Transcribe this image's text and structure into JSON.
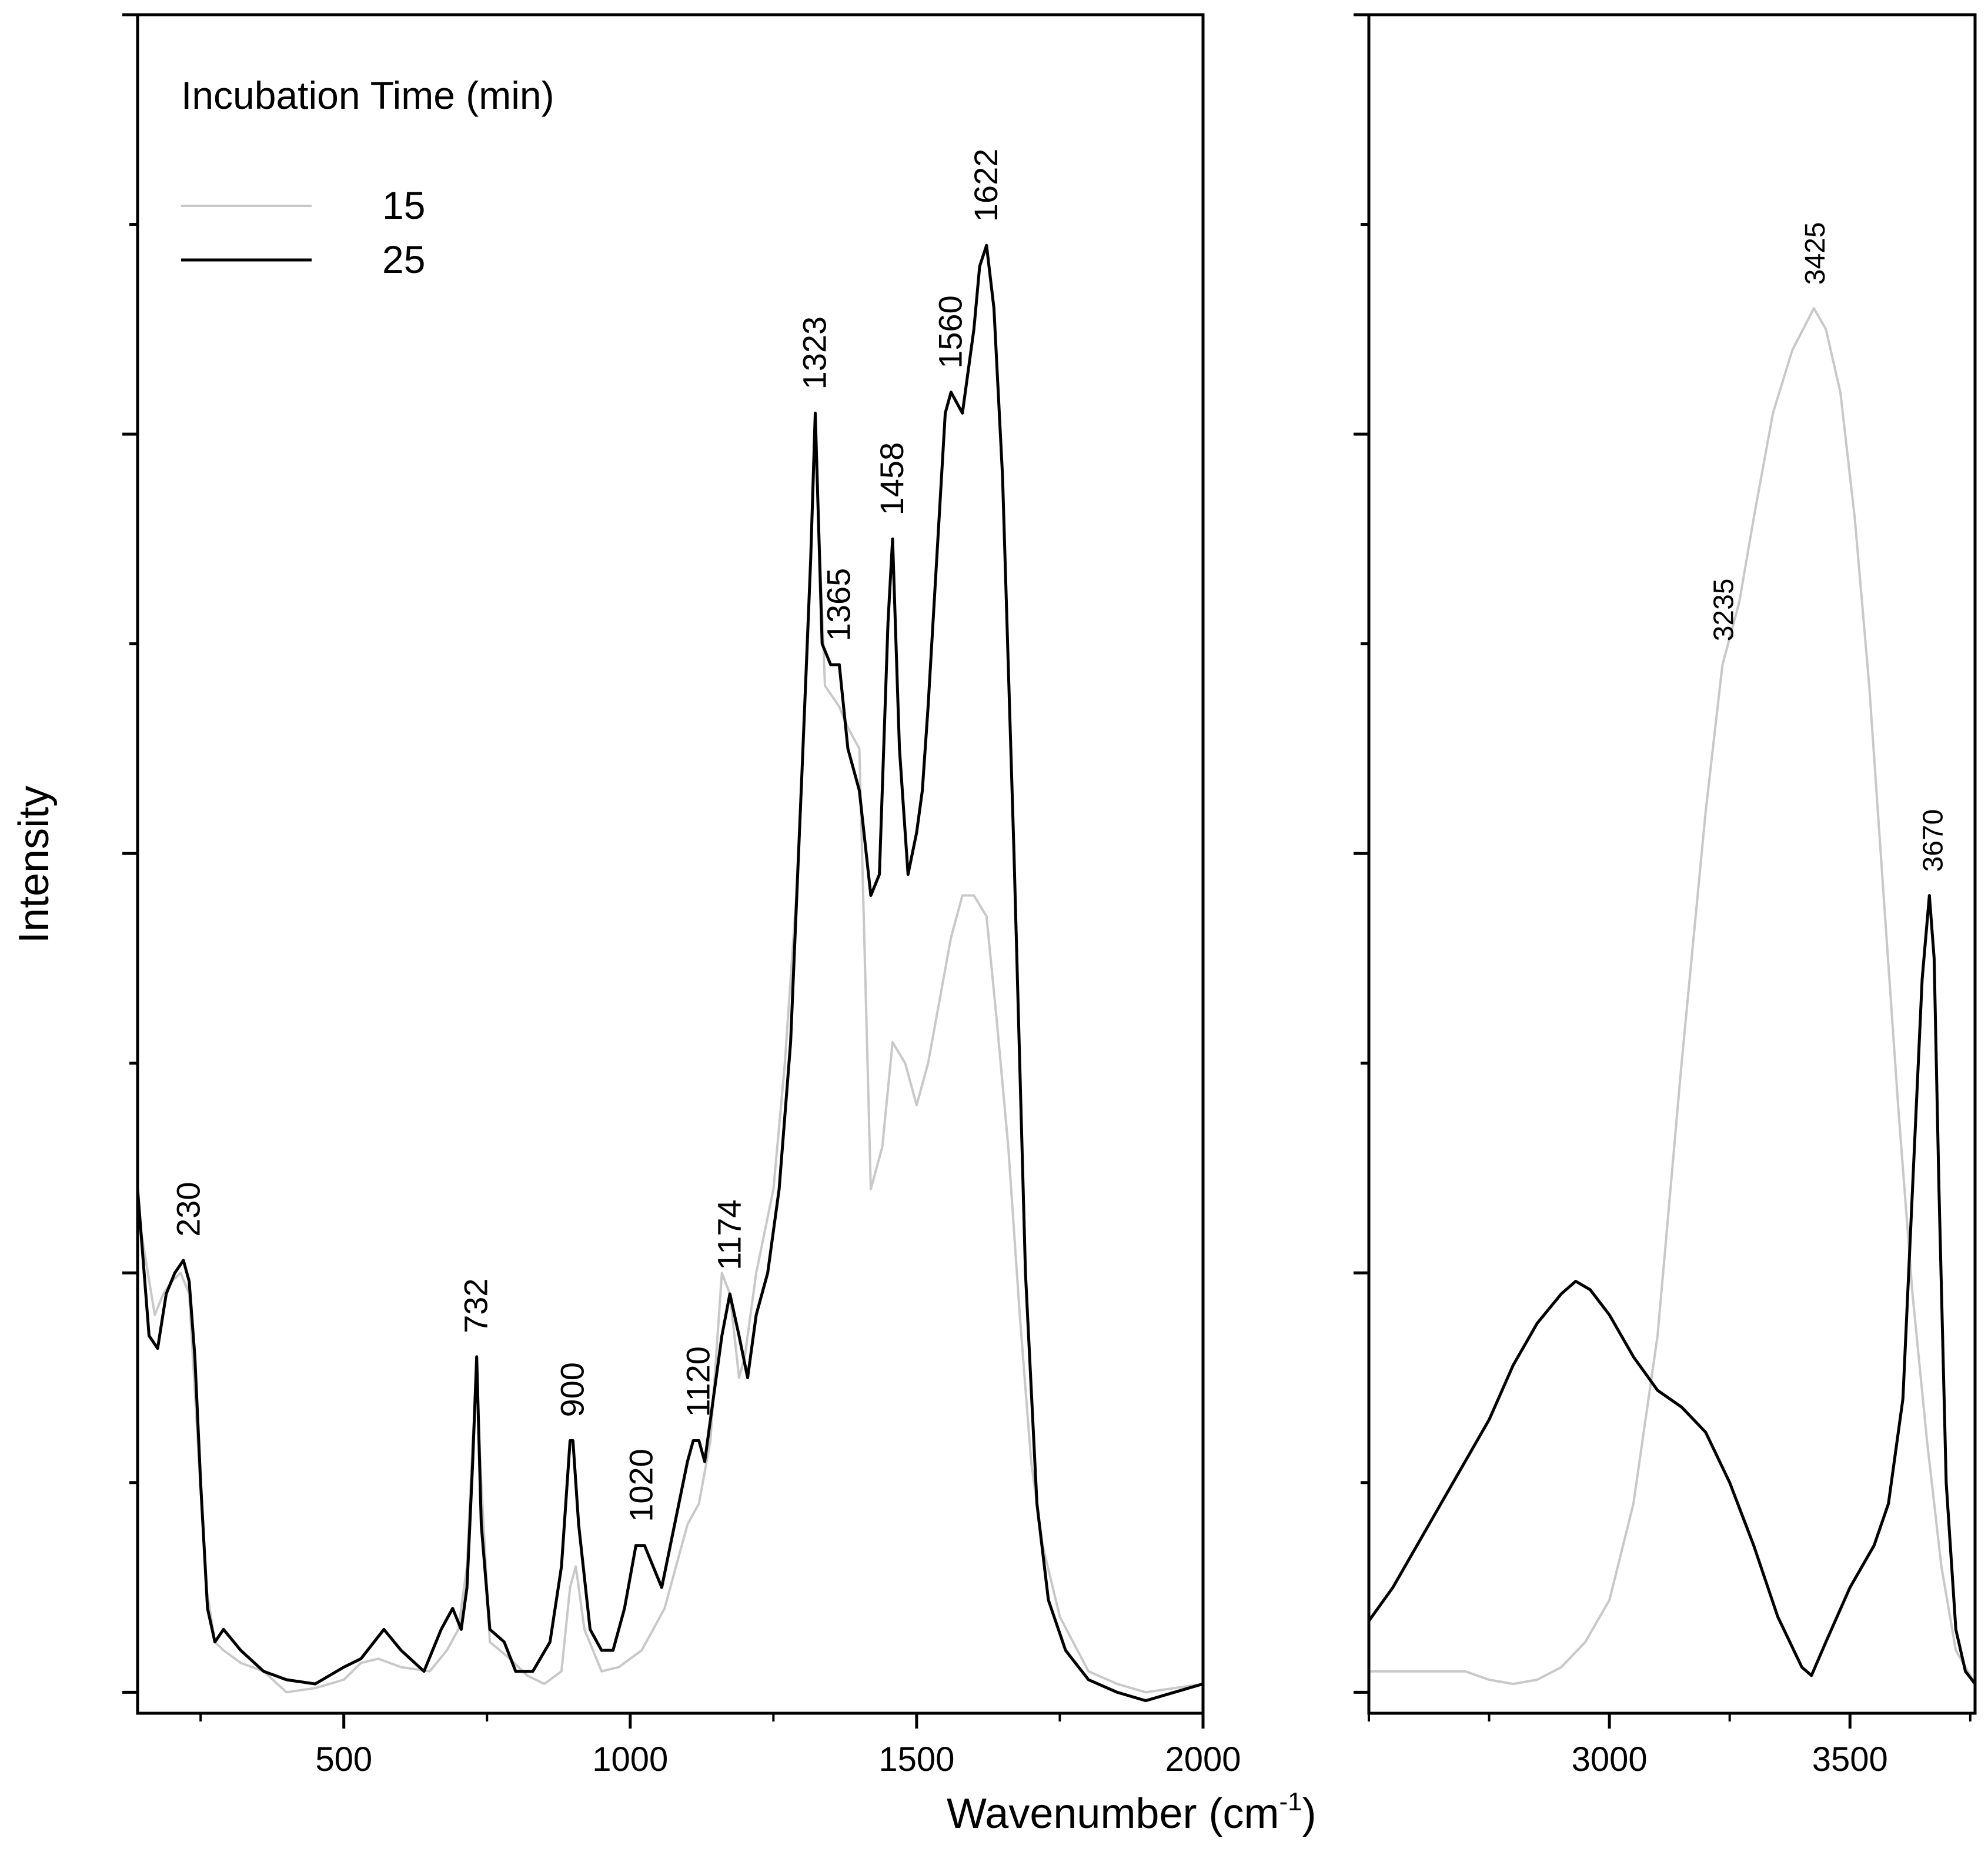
{
  "chart_data": [
    {
      "type": "line",
      "panel": "left",
      "title": "",
      "xlabel": "Wavenumber (cm-1)",
      "xlabel_main": "Wavenumber (cm",
      "xlabel_sup": "-1",
      "xlabel_close": ")",
      "ylabel": "Intensity",
      "xlim": [
        140,
        2000
      ],
      "ylim": [
        -0.05,
        4.0
      ],
      "xticks": [
        500,
        1000,
        1500,
        2000
      ],
      "xtick_labels": [
        "500",
        "1000",
        "1500",
        "2000"
      ],
      "yticks": [
        0,
        0.5,
        1,
        1.5,
        2,
        2.5,
        3,
        3.5,
        4
      ],
      "grid": false,
      "legend": {
        "title": "Incubation Time (min)",
        "position": "top-left",
        "entries": [
          {
            "label": "15",
            "color": "#c8c8c8"
          },
          {
            "label": "25",
            "color": "#000000"
          }
        ]
      },
      "series": [
        {
          "name": "15",
          "color": "#c8c8c8",
          "x": [
            140,
            170,
            185,
            200,
            215,
            230,
            245,
            260,
            275,
            290,
            320,
            360,
            400,
            450,
            500,
            530,
            560,
            600,
            650,
            680,
            700,
            715,
            725,
            732,
            740,
            755,
            790,
            820,
            850,
            880,
            895,
            905,
            920,
            950,
            980,
            1000,
            1020,
            1040,
            1060,
            1080,
            1100,
            1120,
            1140,
            1150,
            1160,
            1174,
            1190,
            1200,
            1220,
            1250,
            1270,
            1290,
            1310,
            1323,
            1340,
            1365,
            1380,
            1400,
            1420,
            1440,
            1458,
            1480,
            1500,
            1520,
            1540,
            1560,
            1580,
            1600,
            1622,
            1640,
            1660,
            1680,
            1700,
            1720,
            1750,
            1800,
            1850,
            1900,
            1950,
            2000
          ],
          "y": [
            1.15,
            0.9,
            0.95,
            0.98,
            1.0,
            0.95,
            0.6,
            0.25,
            0.12,
            0.1,
            0.07,
            0.05,
            0.0,
            0.01,
            0.03,
            0.07,
            0.08,
            0.06,
            0.05,
            0.1,
            0.15,
            0.3,
            0.6,
            0.75,
            0.5,
            0.12,
            0.08,
            0.04,
            0.02,
            0.05,
            0.25,
            0.3,
            0.15,
            0.05,
            0.06,
            0.08,
            0.1,
            0.15,
            0.2,
            0.3,
            0.4,
            0.45,
            0.6,
            0.8,
            1.0,
            0.95,
            0.75,
            0.8,
            1.0,
            1.2,
            1.5,
            1.9,
            2.5,
            3.0,
            2.4,
            2.35,
            2.3,
            2.25,
            1.2,
            1.3,
            1.55,
            1.5,
            1.4,
            1.5,
            1.65,
            1.8,
            1.9,
            1.9,
            1.85,
            1.6,
            1.3,
            0.9,
            0.55,
            0.35,
            0.18,
            0.05,
            0.02,
            0.0,
            0.01,
            0.02
          ]
        },
        {
          "name": "25",
          "color": "#000000",
          "x": [
            140,
            160,
            175,
            190,
            205,
            220,
            230,
            240,
            250,
            262,
            275,
            290,
            320,
            360,
            400,
            450,
            500,
            530,
            570,
            600,
            640,
            670,
            690,
            705,
            715,
            725,
            732,
            740,
            755,
            780,
            800,
            830,
            860,
            880,
            895,
            900,
            910,
            930,
            950,
            970,
            990,
            1010,
            1025,
            1040,
            1055,
            1070,
            1085,
            1100,
            1110,
            1120,
            1130,
            1145,
            1160,
            1174,
            1190,
            1205,
            1220,
            1240,
            1260,
            1280,
            1300,
            1315,
            1323,
            1335,
            1350,
            1365,
            1380,
            1400,
            1420,
            1435,
            1450,
            1458,
            1470,
            1485,
            1500,
            1510,
            1520,
            1535,
            1550,
            1560,
            1580,
            1600,
            1610,
            1622,
            1635,
            1650,
            1670,
            1690,
            1710,
            1730,
            1760,
            1800,
            1850,
            1900,
            1950,
            2000
          ],
          "y": [
            1.2,
            0.85,
            0.82,
            0.95,
            1.0,
            1.03,
            0.98,
            0.8,
            0.5,
            0.2,
            0.12,
            0.15,
            0.1,
            0.05,
            0.03,
            0.02,
            0.06,
            0.08,
            0.15,
            0.1,
            0.05,
            0.15,
            0.2,
            0.15,
            0.25,
            0.55,
            0.8,
            0.4,
            0.15,
            0.12,
            0.05,
            0.05,
            0.12,
            0.3,
            0.6,
            0.6,
            0.4,
            0.15,
            0.1,
            0.1,
            0.2,
            0.35,
            0.35,
            0.3,
            0.25,
            0.35,
            0.45,
            0.55,
            0.6,
            0.6,
            0.55,
            0.7,
            0.85,
            0.95,
            0.85,
            0.75,
            0.9,
            1.0,
            1.2,
            1.55,
            2.2,
            2.7,
            3.05,
            2.5,
            2.45,
            2.45,
            2.25,
            2.15,
            1.9,
            1.95,
            2.55,
            2.75,
            2.25,
            1.95,
            2.05,
            2.15,
            2.35,
            2.7,
            3.05,
            3.1,
            3.05,
            3.25,
            3.4,
            3.45,
            3.3,
            2.9,
            2.0,
            1.0,
            0.45,
            0.22,
            0.1,
            0.03,
            0.0,
            -0.02,
            0.0,
            0.02
          ]
        }
      ],
      "annotations": [
        {
          "text": "230",
          "x": 230,
          "y": 1.03
        },
        {
          "text": "732",
          "x": 732,
          "y": 0.8
        },
        {
          "text": "900",
          "x": 900,
          "y": 0.6
        },
        {
          "text": "1020",
          "x": 1020,
          "y": 0.35
        },
        {
          "text": "1120",
          "x": 1120,
          "y": 0.6
        },
        {
          "text": "1174",
          "x": 1174,
          "y": 0.95
        },
        {
          "text": "1323",
          "x": 1323,
          "y": 3.05
        },
        {
          "text": "1365",
          "x": 1365,
          "y": 2.45
        },
        {
          "text": "1458",
          "x": 1458,
          "y": 2.75
        },
        {
          "text": "1560",
          "x": 1560,
          "y": 3.1
        },
        {
          "text": "1622",
          "x": 1622,
          "y": 3.45
        }
      ]
    },
    {
      "type": "line",
      "panel": "right",
      "xlim": [
        2500,
        3760
      ],
      "ylim": [
        -0.05,
        4.0
      ],
      "xticks": [
        3000,
        3500
      ],
      "xtick_labels": [
        "3000",
        "3500"
      ],
      "yticks": [
        0,
        0.5,
        1,
        1.5,
        2,
        2.5,
        3,
        3.5,
        4
      ],
      "grid": false,
      "series": [
        {
          "name": "15",
          "color": "#c8c8c8",
          "x": [
            2500,
            2600,
            2700,
            2750,
            2800,
            2850,
            2900,
            2950,
            3000,
            3050,
            3100,
            3150,
            3200,
            3235,
            3270,
            3300,
            3340,
            3380,
            3425,
            3450,
            3480,
            3510,
            3540,
            3570,
            3600,
            3630,
            3660,
            3690,
            3720,
            3760
          ],
          "y": [
            0.05,
            0.05,
            0.05,
            0.03,
            0.02,
            0.03,
            0.06,
            0.12,
            0.22,
            0.45,
            0.85,
            1.5,
            2.1,
            2.45,
            2.6,
            2.8,
            3.05,
            3.2,
            3.3,
            3.25,
            3.1,
            2.8,
            2.4,
            1.9,
            1.4,
            0.95,
            0.6,
            0.3,
            0.1,
            0.02
          ]
        },
        {
          "name": "25",
          "color": "#000000",
          "x": [
            2500,
            2550,
            2600,
            2650,
            2700,
            2750,
            2800,
            2850,
            2900,
            2930,
            2960,
            3000,
            3050,
            3100,
            3150,
            3200,
            3250,
            3300,
            3350,
            3400,
            3420,
            3450,
            3500,
            3550,
            3580,
            3610,
            3630,
            3650,
            3665,
            3675,
            3685,
            3700,
            3720,
            3740,
            3760
          ],
          "y": [
            0.17,
            0.25,
            0.35,
            0.45,
            0.55,
            0.65,
            0.78,
            0.88,
            0.95,
            0.98,
            0.96,
            0.9,
            0.8,
            0.72,
            0.68,
            0.62,
            0.5,
            0.35,
            0.18,
            0.06,
            0.04,
            0.12,
            0.25,
            0.35,
            0.45,
            0.7,
            1.2,
            1.7,
            1.9,
            1.75,
            1.2,
            0.5,
            0.15,
            0.05,
            0.02
          ]
        }
      ],
      "annotations": [
        {
          "text": "3235",
          "x": 3235,
          "y": 2.45
        },
        {
          "text": "3425",
          "x": 3425,
          "y": 3.3
        },
        {
          "text": "3670",
          "x": 3670,
          "y": 1.9
        }
      ]
    }
  ]
}
